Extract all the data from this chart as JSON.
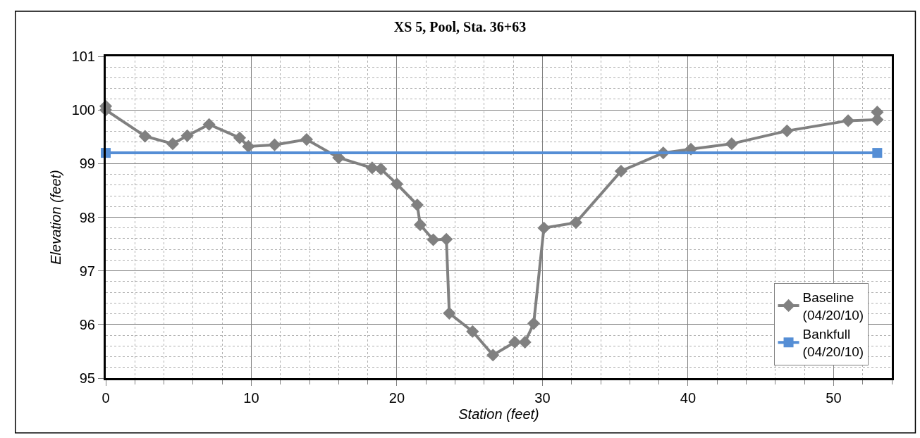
{
  "chart_data": {
    "type": "line",
    "title": "XS 5, Pool, Sta. 36+63",
    "xlabel": "Station (feet)",
    "ylabel": "Elevation (feet)",
    "xlim": [
      0,
      54
    ],
    "xticks": [
      0,
      10,
      20,
      30,
      40,
      50
    ],
    "ylim": [
      95,
      101
    ],
    "yticks": [
      95,
      96,
      97,
      98,
      99,
      100,
      101
    ],
    "grid": true,
    "legend": "bottom right",
    "line_style": "solid",
    "series": [
      {
        "name": "Baseline\n(04/20/10)",
        "color": "#808080",
        "marker": "diamond",
        "x": [
          0,
          0,
          2.7,
          4.6,
          5.6,
          7.1,
          9.2,
          9.8,
          11.6,
          13.8,
          16.0,
          18.3,
          18.9,
          20.0,
          21.4,
          21.6,
          22.5,
          23.4,
          23.6,
          25.2,
          26.6,
          28.1,
          28.8,
          29.4,
          30.1,
          32.3,
          35.4,
          38.3,
          40.2,
          43.0,
          46.8,
          51.0,
          53.0,
          53.0
        ],
        "values": [
          100.07,
          100.0,
          99.51,
          99.37,
          99.52,
          99.73,
          99.48,
          99.32,
          99.35,
          99.45,
          99.11,
          98.92,
          98.9,
          98.62,
          98.23,
          97.86,
          97.58,
          97.59,
          96.21,
          95.87,
          95.43,
          95.67,
          95.67,
          96.02,
          97.8,
          97.9,
          98.86,
          99.2,
          99.27,
          99.37,
          99.61,
          99.8,
          99.82,
          99.96
        ]
      },
      {
        "name": "Bankfull\n(04/20/10)",
        "color": "#558ed5",
        "marker": "square",
        "x": [
          0,
          53.0
        ],
        "values": [
          99.2,
          99.2
        ]
      }
    ]
  }
}
